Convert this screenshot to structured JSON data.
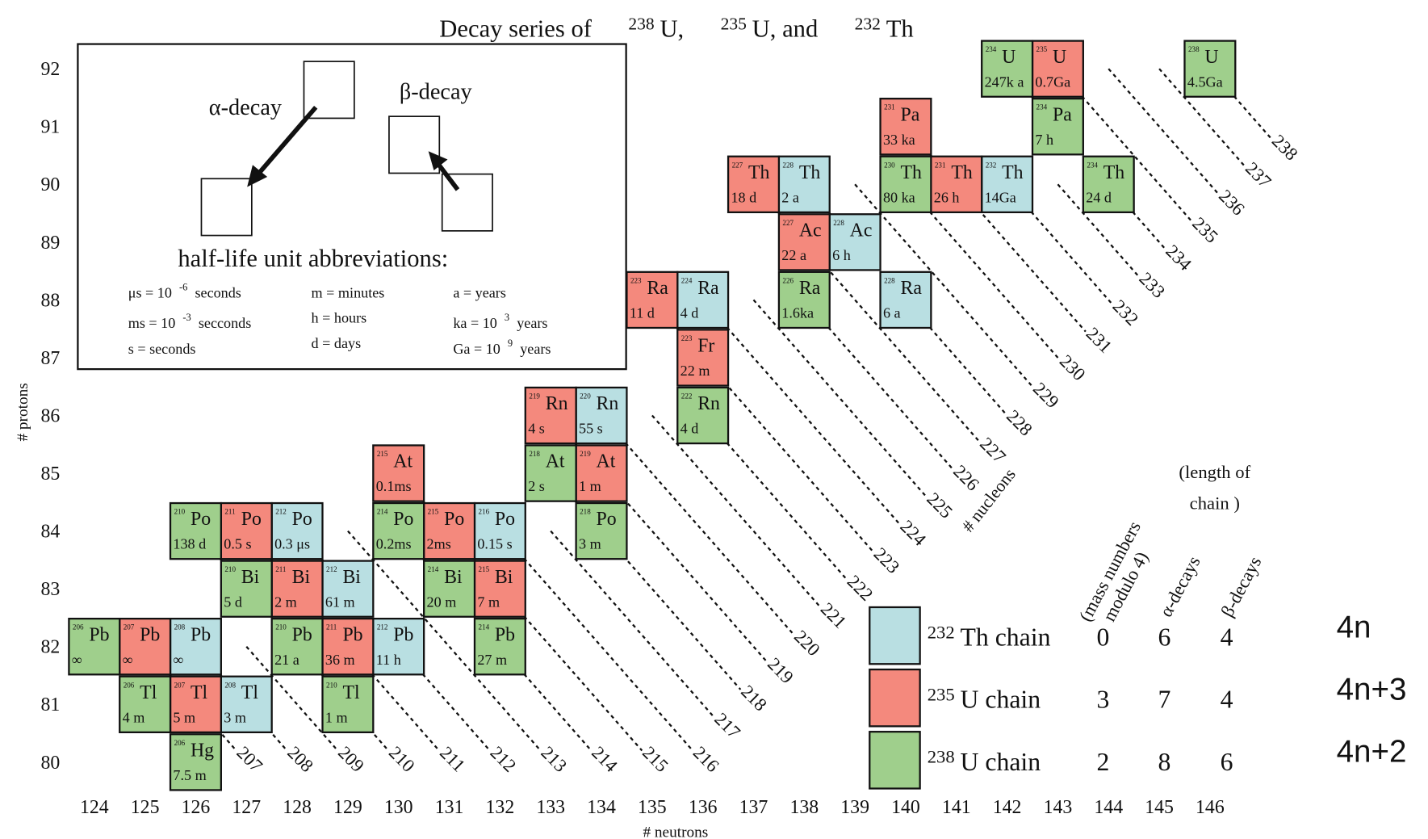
{
  "title": {
    "lead": "Decay series of",
    "isotopes": [
      {
        "mass": "238",
        "name": "U,"
      },
      {
        "mass": "235",
        "name": "U, and"
      },
      {
        "mass": "232",
        "name": "Th"
      }
    ]
  },
  "inset": {
    "alpha": "α-decay",
    "beta": "β-decay",
    "units_title": "half-life unit abbreviations:",
    "units": [
      {
        "text": "μs = 10",
        "sup": "-6",
        "after": "seconds"
      },
      {
        "text": "ms = 10",
        "sup": "-3",
        "after": "secconds"
      },
      {
        "text": "s = seconds"
      },
      {
        "text": "m = minutes"
      },
      {
        "text": "h = hours"
      },
      {
        "text": "d = days"
      },
      {
        "text": "a = years"
      },
      {
        "text": "ka = 10",
        "sup": "3",
        "after": "years"
      },
      {
        "text": "Ga = 10",
        "sup": "9",
        "after": "years"
      }
    ]
  },
  "axes": {
    "protons_label": "# protons",
    "neutrons_label": "# neutrons",
    "nucleons_label": "# nucleons",
    "protons": [
      92,
      91,
      90,
      89,
      88,
      87,
      86,
      85,
      84,
      83,
      82,
      81,
      80
    ],
    "neutrons": [
      124,
      125,
      126,
      127,
      128,
      129,
      130,
      131,
      132,
      133,
      134,
      135,
      136,
      137,
      138,
      139,
      140,
      141,
      142,
      143,
      144,
      145,
      146
    ]
  },
  "isobars": [
    207,
    208,
    209,
    210,
    211,
    212,
    213,
    214,
    215,
    216,
    217,
    218,
    219,
    220,
    221,
    222,
    223,
    224,
    225,
    226,
    227,
    228,
    229,
    230,
    231,
    232,
    233,
    234,
    235,
    236,
    237,
    238
  ],
  "other_color": "#555555",
  "legend_headers": {
    "modulo": [
      "(mass numbers",
      "modulo 4)"
    ],
    "length": [
      "(length of",
      "chain )"
    ],
    "alpha": "α-decays",
    "beta": "β-decays"
  },
  "chains": [
    {
      "mass": 232,
      "name": "Th chain",
      "mod": 0,
      "alpha": 6,
      "beta": 4,
      "formula": "4n",
      "color": "#b9dfe2",
      "label_color": "#5577cc",
      "nuclides": [
        {
          "mass": 232,
          "element": "Th",
          "z": 90,
          "half_life": "14Ga"
        },
        {
          "mass": 228,
          "element": "Ra",
          "z": 88,
          "half_life": "6 a"
        },
        {
          "mass": 228,
          "element": "Ac",
          "z": 89,
          "half_life": "6 h"
        },
        {
          "mass": 228,
          "element": "Th",
          "z": 90,
          "half_life": "2 a"
        },
        {
          "mass": 224,
          "element": "Ra",
          "z": 88,
          "half_life": "4 d"
        },
        {
          "mass": 220,
          "element": "Rn",
          "z": 86,
          "half_life": "55 s"
        },
        {
          "mass": 216,
          "element": "Po",
          "z": 84,
          "half_life": "0.15 s"
        },
        {
          "mass": 212,
          "element": "Pb",
          "z": 82,
          "half_life": "11 h"
        },
        {
          "mass": 212,
          "element": "Bi",
          "z": 83,
          "half_life": "61 m"
        },
        {
          "mass": 212,
          "element": "Po",
          "z": 84,
          "half_life": "0.3 μs"
        },
        {
          "mass": 208,
          "element": "Tl",
          "z": 81,
          "half_life": "3 m"
        },
        {
          "mass": 208,
          "element": "Pb",
          "z": 82,
          "half_life": "∞"
        }
      ]
    },
    {
      "mass": 235,
      "name": "U chain",
      "mod": 3,
      "alpha": 7,
      "beta": 4,
      "formula": "4n+3",
      "color": "#f4897d",
      "label_color": "#e04848",
      "nuclides": [
        {
          "mass": 235,
          "element": "U",
          "z": 92,
          "half_life": "0.7Ga"
        },
        {
          "mass": 231,
          "element": "Th",
          "z": 90,
          "half_life": "26 h"
        },
        {
          "mass": 231,
          "element": "Pa",
          "z": 91,
          "half_life": "33 ka"
        },
        {
          "mass": 227,
          "element": "Ac",
          "z": 89,
          "half_life": "22 a"
        },
        {
          "mass": 227,
          "element": "Th",
          "z": 90,
          "half_life": "18 d"
        },
        {
          "mass": 223,
          "element": "Fr",
          "z": 87,
          "half_life": "22 m"
        },
        {
          "mass": 223,
          "element": "Ra",
          "z": 88,
          "half_life": "11 d"
        },
        {
          "mass": 219,
          "element": "At",
          "z": 85,
          "half_life": "1 m"
        },
        {
          "mass": 219,
          "element": "Rn",
          "z": 86,
          "half_life": "4 s"
        },
        {
          "mass": 215,
          "element": "Bi",
          "z": 83,
          "half_life": "7 m"
        },
        {
          "mass": 215,
          "element": "Po",
          "z": 84,
          "half_life": "2ms"
        },
        {
          "mass": 215,
          "element": "At",
          "z": 85,
          "half_life": "0.1ms"
        },
        {
          "mass": 211,
          "element": "Pb",
          "z": 82,
          "half_life": "36 m"
        },
        {
          "mass": 211,
          "element": "Bi",
          "z": 83,
          "half_life": "2 m"
        },
        {
          "mass": 211,
          "element": "Po",
          "z": 84,
          "half_life": "0.5 s"
        },
        {
          "mass": 207,
          "element": "Tl",
          "z": 81,
          "half_life": "5 m"
        },
        {
          "mass": 207,
          "element": "Pb",
          "z": 82,
          "half_life": "∞"
        }
      ]
    },
    {
      "mass": 238,
      "name": "U chain",
      "mod": 2,
      "alpha": 8,
      "beta": 6,
      "formula": "4n+2",
      "color": "#9fcf8c",
      "label_color": "#3a9a5a",
      "nuclides": [
        {
          "mass": 238,
          "element": "U",
          "z": 92,
          "half_life": "4.5Ga"
        },
        {
          "mass": 234,
          "element": "Th",
          "z": 90,
          "half_life": "24 d"
        },
        {
          "mass": 234,
          "element": "Pa",
          "z": 91,
          "half_life": "7 h"
        },
        {
          "mass": 234,
          "element": "U",
          "z": 92,
          "half_life": "247k a"
        },
        {
          "mass": 230,
          "element": "Th",
          "z": 90,
          "half_life": "80 ka"
        },
        {
          "mass": 226,
          "element": "Ra",
          "z": 88,
          "half_life": "1.6ka"
        },
        {
          "mass": 222,
          "element": "Rn",
          "z": 86,
          "half_life": "4 d"
        },
        {
          "mass": 218,
          "element": "Po",
          "z": 84,
          "half_life": "3 m"
        },
        {
          "mass": 218,
          "element": "At",
          "z": 85,
          "half_life": "2 s"
        },
        {
          "mass": 214,
          "element": "Pb",
          "z": 82,
          "half_life": "27 m"
        },
        {
          "mass": 214,
          "element": "Bi",
          "z": 83,
          "half_life": "20 m"
        },
        {
          "mass": 214,
          "element": "Po",
          "z": 84,
          "half_life": "0.2ms"
        },
        {
          "mass": 210,
          "element": "Tl",
          "z": 81,
          "half_life": "1 m"
        },
        {
          "mass": 210,
          "element": "Pb",
          "z": 82,
          "half_life": "21 a"
        },
        {
          "mass": 210,
          "element": "Bi",
          "z": 83,
          "half_life": "5 d"
        },
        {
          "mass": 210,
          "element": "Po",
          "z": 84,
          "half_life": "138 d"
        },
        {
          "mass": 206,
          "element": "Hg",
          "z": 80,
          "half_life": "7.5 m"
        },
        {
          "mass": 206,
          "element": "Tl",
          "z": 81,
          "half_life": "4 m"
        },
        {
          "mass": 206,
          "element": "Pb",
          "z": 82,
          "half_life": "∞"
        }
      ]
    }
  ]
}
